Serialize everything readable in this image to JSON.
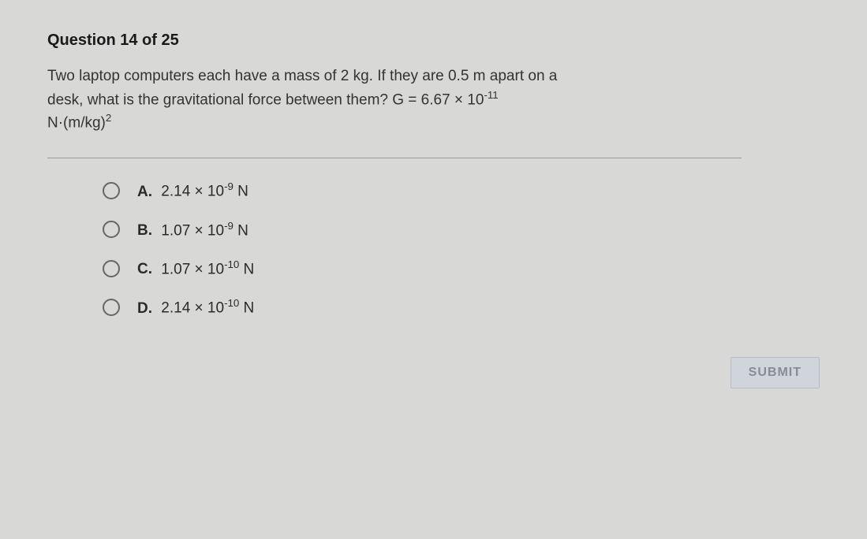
{
  "header": {
    "title": "Question 14 of 25"
  },
  "question": {
    "line1": "Two laptop computers each have a mass of 2 kg. If they are 0.5 m apart on a",
    "line2_prefix": "desk, what is the gravitational force between them? G = 6.67 × 10",
    "line2_exp": "-11",
    "line3_prefix": "N·(m/kg)",
    "line3_exp": "2"
  },
  "options": [
    {
      "letter": "A.",
      "prefix": "2.14 × 10",
      "exp": "-9",
      "suffix": " N"
    },
    {
      "letter": "B.",
      "prefix": "1.07 × 10",
      "exp": "-9",
      "suffix": " N"
    },
    {
      "letter": "C.",
      "prefix": "1.07 × 10",
      "exp": "-10",
      "suffix": " N"
    },
    {
      "letter": "D.",
      "prefix": "2.14 × 10",
      "exp": "-10",
      "suffix": " N"
    }
  ],
  "submit": {
    "label": "SUBMIT"
  },
  "style": {
    "background": "#d8d8d6",
    "text_color": "#2a2a2a",
    "radio_border": "#666666",
    "submit_bg": "#d0d4db",
    "submit_text": "#888c96",
    "divider": "#9a9a9a"
  }
}
